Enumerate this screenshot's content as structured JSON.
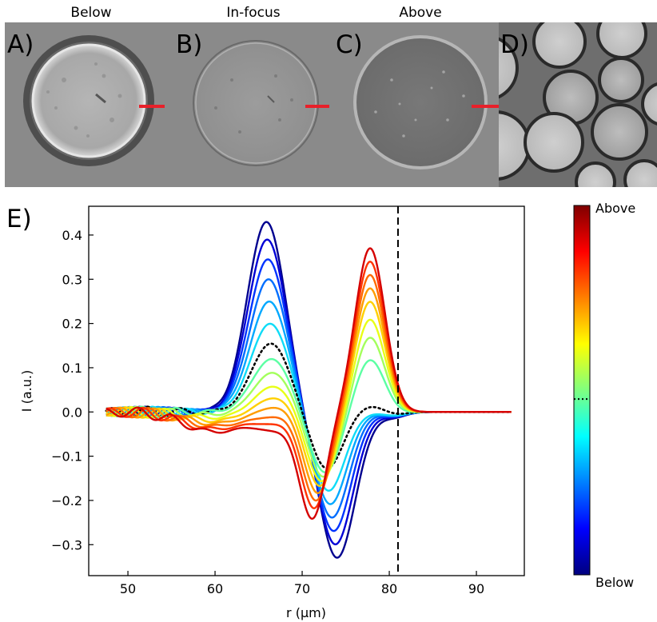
{
  "images": {
    "panels": [
      {
        "letter": "A)",
        "caption": "Below"
      },
      {
        "letter": "B)",
        "caption": "In-focus"
      },
      {
        "letter": "C)",
        "caption": "Above"
      },
      {
        "letter": "D)",
        "caption": ""
      }
    ],
    "colors": {
      "background": "#8a8a8a",
      "marker": "#e8202a"
    }
  },
  "chart_data": {
    "panel_letter": "E)",
    "type": "line",
    "xlabel": "r (μm)",
    "ylabel": "I (a.u.)",
    "xlim": [
      45.5,
      95.5
    ],
    "ylim": [
      -0.37,
      0.465
    ],
    "xticks": [
      50,
      60,
      70,
      80,
      90
    ],
    "yticks": [
      -0.3,
      -0.2,
      -0.1,
      0.0,
      0.1,
      0.2,
      0.3,
      0.4
    ],
    "ytick_labels": [
      "−0.3",
      "−0.2",
      "−0.1",
      "0.0",
      "0.1",
      "0.2",
      "0.3",
      "0.4"
    ],
    "vline_x": 81,
    "x_range": [
      47.5,
      94
    ],
    "grid": false,
    "colorbar": {
      "top_label": "Above",
      "bottom_label": "Below",
      "colormap": "jet",
      "in_focus_fraction": 0.476
    },
    "series": [
      {
        "color": "#00008f",
        "p1": 0.43,
        "t1": -0.33,
        "p2": 0.0
      },
      {
        "color": "#0000d6",
        "p1": 0.39,
        "t1": -0.3,
        "p2": 0.0
      },
      {
        "color": "#0033ff",
        "p1": 0.345,
        "t1": -0.27,
        "p2": 0.0
      },
      {
        "color": "#006eff",
        "p1": 0.3,
        "t1": -0.24,
        "p2": 0.0
      },
      {
        "color": "#00a8ff",
        "p1": 0.25,
        "t1": -0.21,
        "p2": 0.0
      },
      {
        "color": "#0fdcf7",
        "p1": 0.2,
        "t1": -0.18,
        "p2": 0.0
      },
      {
        "color": "#000000",
        "dotted": true,
        "p1": 0.155,
        "t1": -0.13,
        "p2": 0.015
      },
      {
        "color": "#5cffa3",
        "p1": 0.12,
        "t1": -0.14,
        "p2": 0.12
      },
      {
        "color": "#a3ff5c",
        "p1": 0.09,
        "t1": -0.15,
        "p2": 0.17
      },
      {
        "color": "#e8ff17",
        "p1": 0.06,
        "t1": -0.16,
        "p2": 0.21
      },
      {
        "color": "#ffd000",
        "p1": 0.035,
        "t1": -0.17,
        "p2": 0.25
      },
      {
        "color": "#ff9c00",
        "p1": 0.015,
        "t1": -0.185,
        "p2": 0.28
      },
      {
        "color": "#ff6a00",
        "p1": -0.005,
        "t1": -0.2,
        "p2": 0.31
      },
      {
        "color": "#ff3300",
        "p1": -0.02,
        "t1": -0.215,
        "p2": 0.34
      },
      {
        "color": "#d50000",
        "p1": -0.035,
        "t1": -0.235,
        "p2": 0.37
      }
    ]
  }
}
